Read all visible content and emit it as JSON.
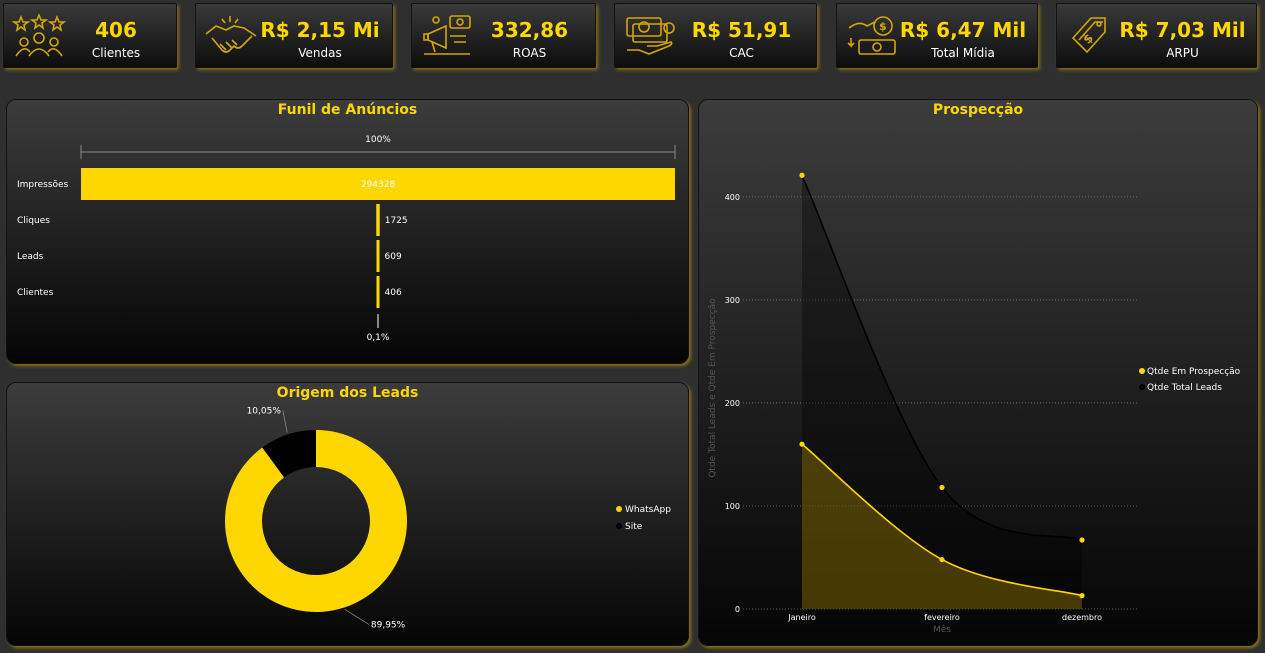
{
  "colors": {
    "accent": "#ffd700",
    "dark_series": "#000000"
  },
  "kpis": [
    {
      "value": "406",
      "label": "Clientes",
      "icon": "people-stars-icon"
    },
    {
      "value": "R$ 2,15 Mi",
      "label": "Vendas",
      "icon": "handshake-icon"
    },
    {
      "value": "332,86",
      "label": "ROAS",
      "icon": "marketing-megaphone-icon"
    },
    {
      "value": "R$ 51,91",
      "label": "CAC",
      "icon": "money-hand-icon"
    },
    {
      "value": "R$ 6,47 Mil",
      "label": "Total Mídia",
      "icon": "money-coins-icon"
    },
    {
      "value": "R$ 7,03 Mil",
      "label": "ARPU",
      "icon": "price-tag-icon"
    }
  ],
  "funnel": {
    "title": "Funil de Anúncios"
  },
  "donut": {
    "title": "Origem dos Leads"
  },
  "line": {
    "title": "Prospecção"
  },
  "chart_data": [
    {
      "type": "bar",
      "subtype": "funnel",
      "title": "Funil de Anúncios",
      "categories": [
        "Impressões",
        "Cliques",
        "Leads",
        "Clientes"
      ],
      "values": [
        294328,
        1725,
        609,
        406
      ],
      "top_percent_label": "100%",
      "bottom_percent_label": "0,1%",
      "color": "#ffd700"
    },
    {
      "type": "pie",
      "subtype": "donut",
      "title": "Origem dos Leads",
      "labels": [
        "WhatsApp",
        "Site"
      ],
      "values": [
        89.95,
        10.05
      ],
      "value_labels": [
        "89,95%",
        "10,05%"
      ],
      "colors": [
        "#ffd700",
        "#000000"
      ],
      "legend": "right"
    },
    {
      "type": "area",
      "title": "Prospecção",
      "categories": [
        "Janeiro",
        "fevereiro",
        "dezembro"
      ],
      "xlabel": "Mês",
      "ylabel": "Qtde Total Leads e Qtde Em Prospecção",
      "yticks": [
        0,
        100,
        200,
        300,
        400
      ],
      "ylim": [
        0,
        430
      ],
      "grid": true,
      "legend": "right",
      "series": [
        {
          "name": "Qtde Em Prospecção",
          "values": [
            160,
            48,
            13
          ],
          "color": "#ffd700"
        },
        {
          "name": "Qtde Total Leads",
          "values": [
            421,
            118,
            67
          ],
          "color": "#000000"
        }
      ]
    }
  ]
}
